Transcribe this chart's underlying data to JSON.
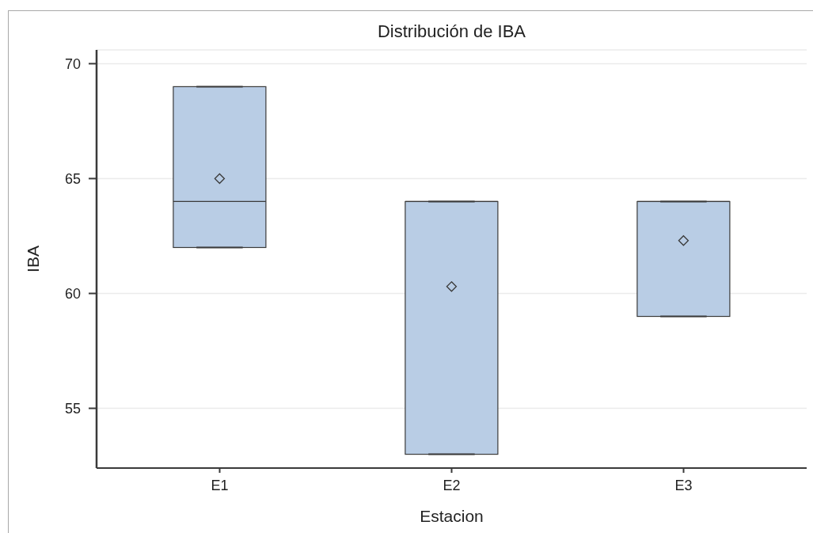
{
  "chart_data": {
    "type": "box",
    "title": "Distribución de IBA",
    "xlabel": "Estacion",
    "ylabel": "IBA",
    "categories": [
      "E1",
      "E2",
      "E3"
    ],
    "boxes": [
      {
        "low": 62,
        "q1": 62,
        "median": 64,
        "q3": 69,
        "high": 69,
        "mean": 65
      },
      {
        "low": 53,
        "q1": 53,
        "median": 64,
        "q3": 64,
        "high": 64,
        "mean": 60.3
      },
      {
        "low": 59,
        "q1": 59,
        "median": 64,
        "q3": 64,
        "high": 64,
        "mean": 62.3
      }
    ],
    "color": "#b9cde5",
    "ylim": [
      52.4,
      70.6
    ],
    "yticks": [
      55,
      60,
      65,
      70
    ],
    "grid": "y",
    "marker": "diamond"
  }
}
